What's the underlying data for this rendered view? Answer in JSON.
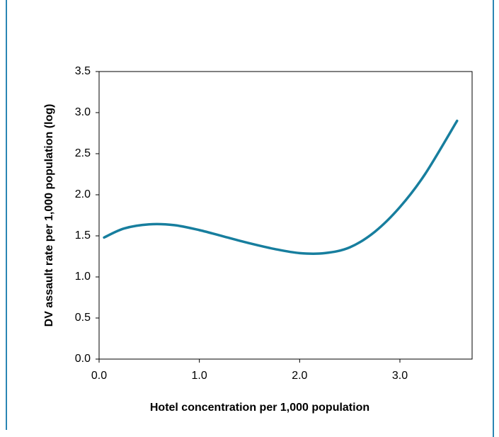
{
  "chart_data": {
    "type": "line",
    "x_label": "Hotel concentration per 1,000 population",
    "y_label": "DV assault rate per 1,000 population (log)",
    "x": [
      0.05,
      0.25,
      0.5,
      0.75,
      1.0,
      1.25,
      1.5,
      1.75,
      2.0,
      2.25,
      2.5,
      2.75,
      3.0,
      3.25,
      3.57
    ],
    "series": [
      {
        "color": "#177e9e",
        "values": [
          1.48,
          1.59,
          1.64,
          1.63,
          1.57,
          1.49,
          1.41,
          1.34,
          1.29,
          1.29,
          1.36,
          1.55,
          1.85,
          2.25,
          2.9
        ]
      }
    ],
    "xlim": [
      0,
      3.72
    ],
    "xticks": [
      {
        "value": 0,
        "label": "0.0"
      },
      {
        "value": 1,
        "label": "1.0"
      },
      {
        "value": 2,
        "label": "2.0"
      },
      {
        "value": 3,
        "label": "3.0"
      }
    ],
    "ylim": [
      0,
      3.5
    ],
    "yticks": [
      {
        "value": 0,
        "label": "0.0"
      },
      {
        "value": 0.5,
        "label": "0.5"
      },
      {
        "value": 1,
        "label": "1.0"
      },
      {
        "value": 1.5,
        "label": "1.5"
      },
      {
        "value": 2,
        "label": "2.0"
      },
      {
        "value": 2.5,
        "label": "2.5"
      },
      {
        "value": 3,
        "label": "3.0"
      },
      {
        "value": 3.5,
        "label": "3.5"
      }
    ],
    "grid": false
  }
}
